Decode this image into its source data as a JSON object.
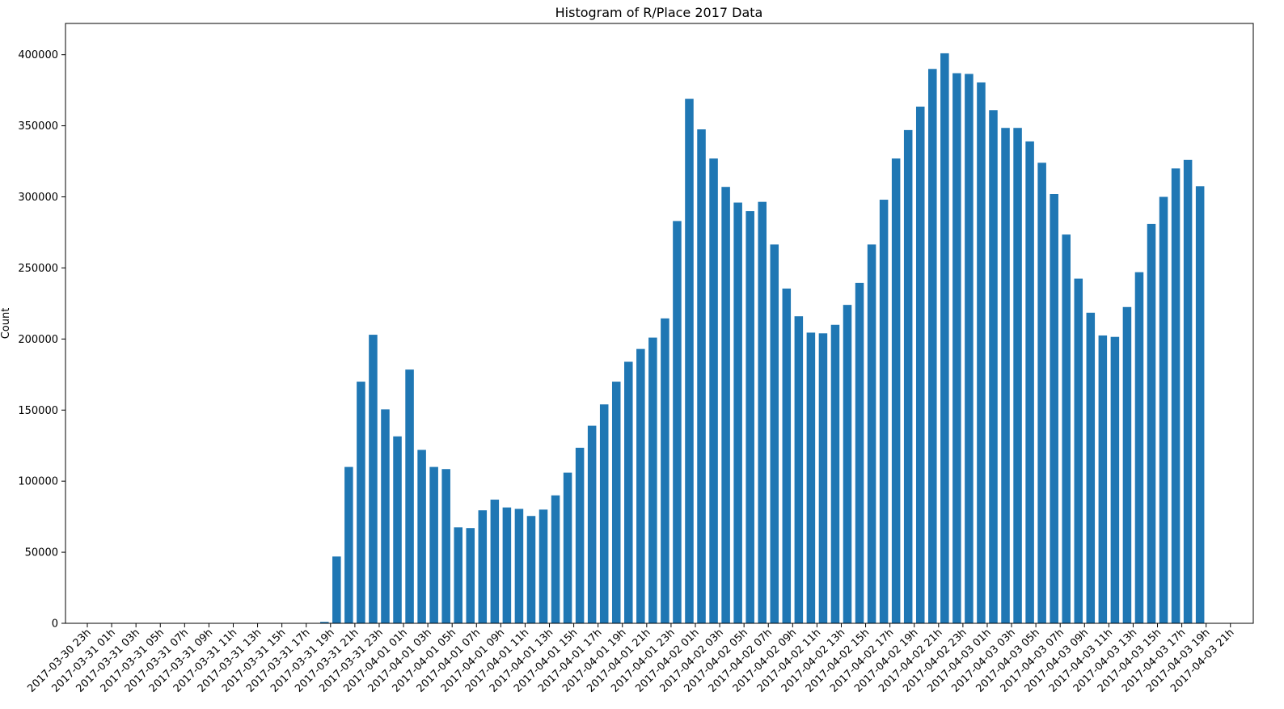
{
  "chart_data": {
    "type": "bar",
    "title": "Histogram of R/Place 2017 Data",
    "xlabel": "",
    "ylabel": "Count",
    "ylim": [
      0,
      422000
    ],
    "yticks": [
      0,
      50000,
      100000,
      150000,
      200000,
      250000,
      300000,
      350000,
      400000
    ],
    "grid": false,
    "bar_color": "#1f77b4",
    "bar_start": "2017-03-30 23h",
    "bar_step_hours": 1,
    "xtick_labels": [
      "2017-03-30 23h",
      "2017-03-31 01h",
      "2017-03-31 03h",
      "2017-03-31 05h",
      "2017-03-31 07h",
      "2017-03-31 09h",
      "2017-03-31 11h",
      "2017-03-31 13h",
      "2017-03-31 15h",
      "2017-03-31 17h",
      "2017-03-31 19h",
      "2017-03-31 21h",
      "2017-03-31 23h",
      "2017-04-01 01h",
      "2017-04-01 03h",
      "2017-04-01 05h",
      "2017-04-01 07h",
      "2017-04-01 09h",
      "2017-04-01 11h",
      "2017-04-01 13h",
      "2017-04-01 15h",
      "2017-04-01 17h",
      "2017-04-01 19h",
      "2017-04-01 21h",
      "2017-04-01 23h",
      "2017-04-02 01h",
      "2017-04-02 03h",
      "2017-04-02 05h",
      "2017-04-02 07h",
      "2017-04-02 09h",
      "2017-04-02 11h",
      "2017-04-02 13h",
      "2017-04-02 15h",
      "2017-04-02 17h",
      "2017-04-02 19h",
      "2017-04-02 21h",
      "2017-04-02 23h",
      "2017-04-03 01h",
      "2017-04-03 03h",
      "2017-04-03 05h",
      "2017-04-03 07h",
      "2017-04-03 09h",
      "2017-04-03 11h",
      "2017-04-03 13h",
      "2017-04-03 15h",
      "2017-04-03 17h",
      "2017-04-03 19h",
      "2017-04-03 21h"
    ],
    "values": [
      0,
      0,
      0,
      0,
      0,
      200,
      0,
      0,
      0,
      0,
      0,
      0,
      0,
      0,
      0,
      0,
      0,
      0,
      0,
      1000,
      47000,
      110000,
      170000,
      203000,
      150500,
      131500,
      178500,
      122000,
      110000,
      108500,
      67500,
      67000,
      79500,
      87000,
      81500,
      80500,
      75500,
      80000,
      90000,
      106000,
      123500,
      139000,
      154000,
      170000,
      184000,
      193000,
      201000,
      214500,
      283000,
      369000,
      347500,
      327000,
      307000,
      296000,
      290000,
      296500,
      266500,
      235500,
      216000,
      204500,
      204000,
      210000,
      224000,
      239500,
      266500,
      298000,
      327000,
      347000,
      363500,
      390000,
      401000,
      387000,
      386500,
      380500,
      361000,
      348500,
      348500,
      339000,
      324000,
      302000,
      273500,
      242500,
      218500,
      202500,
      201500,
      222500,
      247000,
      281000,
      300000,
      320000,
      326000,
      307500
    ]
  }
}
